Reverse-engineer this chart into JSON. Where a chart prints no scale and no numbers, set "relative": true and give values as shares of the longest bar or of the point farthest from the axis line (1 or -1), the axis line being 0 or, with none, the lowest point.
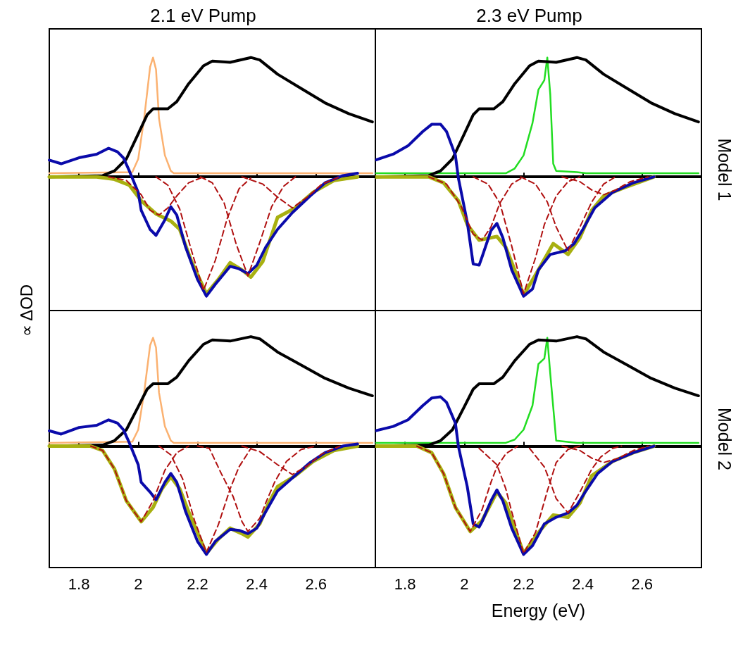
{
  "chart_data": [
    {
      "type": "line",
      "title": "2.1 eV Pump",
      "ylabel": "∝ ΔOD",
      "relative": true,
      "xlim": [
        1.7,
        2.8
      ],
      "xticks": [
        1.8,
        2,
        2.2,
        2.4,
        2.6
      ],
      "tick_labels": false,
      "grid": false,
      "ref_lines": [
        {
          "axis": "y",
          "value": 0,
          "color": "#000000"
        }
      ],
      "series": [
        {
          "color": "#fbb170",
          "x": [
            1.7,
            1.98,
            2.0,
            2.02,
            2.04,
            2.05,
            2.06,
            2.07,
            2.09,
            2.11,
            2.12,
            2.79
          ],
          "values": [
            0.03,
            0.04,
            0.15,
            0.49,
            0.92,
            1.0,
            0.9,
            0.49,
            0.18,
            0.05,
            0.03,
            0.03
          ]
        },
        {
          "color": "#000000",
          "x": [
            1.7,
            1.88,
            1.92,
            1.96,
            2.0,
            2.03,
            2.05,
            2.1,
            2.13,
            2.17,
            2.22,
            2.25,
            2.31,
            2.38,
            2.41,
            2.47,
            2.55,
            2.63,
            2.71,
            2.79
          ],
          "values": [
            0,
            0.01,
            0.05,
            0.15,
            0.36,
            0.52,
            0.57,
            0.57,
            0.63,
            0.78,
            0.93,
            0.97,
            0.96,
            1.0,
            0.98,
            0.86,
            0.74,
            0.62,
            0.53,
            0.46
          ]
        },
        {
          "color": "#a8b010",
          "x": [
            1.7,
            1.86,
            1.92,
            1.97,
            2.01,
            2.06,
            2.11,
            2.14,
            2.18,
            2.23,
            2.27,
            2.31,
            2.35,
            2.38,
            2.42,
            2.47,
            2.53,
            2.59,
            2.66,
            2.74
          ],
          "values": [
            0,
            0,
            -0.02,
            -0.07,
            -0.2,
            -0.31,
            -0.37,
            -0.44,
            -0.71,
            -0.98,
            -0.86,
            -0.72,
            -0.78,
            -0.84,
            -0.71,
            -0.34,
            -0.26,
            -0.13,
            -0.03,
            0
          ]
        },
        {
          "color": "#b01010",
          "line_style": "dashed",
          "x": [
            1.9,
            1.96,
            2.01,
            2.04,
            2.07,
            2.1,
            2.13,
            2.17,
            2.22
          ],
          "values": [
            0,
            -0.03,
            -0.15,
            -0.28,
            -0.32,
            -0.26,
            -0.16,
            -0.05,
            0
          ]
        },
        {
          "color": "#b01010",
          "line_style": "dashed",
          "x": [
            2.06,
            2.1,
            2.14,
            2.18,
            2.22,
            2.26,
            2.3,
            2.34,
            2.38
          ],
          "values": [
            0,
            -0.07,
            -0.27,
            -0.62,
            -0.95,
            -0.7,
            -0.35,
            -0.1,
            -0.01
          ]
        },
        {
          "color": "#b01010",
          "line_style": "dashed",
          "x": [
            2.21,
            2.25,
            2.29,
            2.33,
            2.37,
            2.41,
            2.45,
            2.49,
            2.53
          ],
          "values": [
            0,
            -0.05,
            -0.22,
            -0.56,
            -0.83,
            -0.55,
            -0.25,
            -0.08,
            0
          ]
        },
        {
          "color": "#b01010",
          "line_style": "dashed",
          "x": [
            2.35,
            2.42,
            2.47,
            2.52,
            2.57,
            2.62,
            2.68
          ],
          "values": [
            0,
            -0.06,
            -0.17,
            -0.26,
            -0.17,
            -0.06,
            0
          ]
        },
        {
          "color": "#0a0aaa",
          "x": [
            1.7,
            1.74,
            1.8,
            1.86,
            1.9,
            1.93,
            1.95,
            1.97,
            2.0,
            2.01,
            2.04,
            2.06,
            2.09,
            2.11,
            2.13,
            2.16,
            2.2,
            2.23,
            2.26,
            2.31,
            2.34,
            2.37,
            2.4,
            2.43,
            2.47,
            2.52,
            2.58,
            2.63,
            2.69,
            2.74
          ],
          "values": [
            0.14,
            0.11,
            0.16,
            0.19,
            0.24,
            0.21,
            0.16,
            0.05,
            -0.13,
            -0.28,
            -0.44,
            -0.49,
            -0.36,
            -0.25,
            -0.32,
            -0.59,
            -0.86,
            -1.0,
            -0.9,
            -0.75,
            -0.77,
            -0.81,
            -0.74,
            -0.59,
            -0.44,
            -0.3,
            -0.16,
            -0.05,
            0.01,
            0.03
          ]
        }
      ]
    },
    {
      "type": "line",
      "title": "2.3 eV Pump",
      "y2label": "Model 1",
      "relative": true,
      "xlim": [
        1.7,
        2.8
      ],
      "xticks": [
        1.8,
        2,
        2.2,
        2.4,
        2.6
      ],
      "tick_labels": false,
      "grid": false,
      "ref_lines": [
        {
          "axis": "y",
          "value": 0,
          "color": "#000000"
        }
      ],
      "series": [
        {
          "color": "#22dd22",
          "x": [
            1.7,
            2.14,
            2.17,
            2.2,
            2.23,
            2.25,
            2.27,
            2.28,
            2.29,
            2.3,
            2.31,
            2.38,
            2.41,
            2.79
          ],
          "values": [
            0.03,
            0.03,
            0.07,
            0.18,
            0.45,
            0.73,
            0.81,
            1.0,
            0.69,
            0.11,
            0.05,
            0.04,
            0.03,
            0.03
          ]
        },
        {
          "color": "#000000",
          "x": [
            1.7,
            1.88,
            1.92,
            1.96,
            2.0,
            2.03,
            2.05,
            2.1,
            2.13,
            2.17,
            2.22,
            2.25,
            2.31,
            2.38,
            2.41,
            2.47,
            2.55,
            2.63,
            2.71,
            2.79
          ],
          "values": [
            0,
            0.01,
            0.05,
            0.15,
            0.36,
            0.52,
            0.57,
            0.57,
            0.63,
            0.78,
            0.93,
            0.97,
            0.96,
            1.0,
            0.98,
            0.86,
            0.74,
            0.62,
            0.53,
            0.46
          ]
        },
        {
          "color": "#a8b010",
          "x": [
            1.7,
            1.88,
            1.93,
            1.98,
            2.01,
            2.05,
            2.11,
            2.14,
            2.17,
            2.2,
            2.25,
            2.3,
            2.35,
            2.39,
            2.43,
            2.47,
            2.54,
            2.64
          ],
          "values": [
            0,
            0,
            -0.05,
            -0.2,
            -0.4,
            -0.53,
            -0.5,
            -0.59,
            -0.78,
            -0.99,
            -0.78,
            -0.56,
            -0.65,
            -0.51,
            -0.28,
            -0.16,
            -0.09,
            0
          ]
        },
        {
          "color": "#b01010",
          "line_style": "dashed",
          "x": [
            1.88,
            1.94,
            1.99,
            2.03,
            2.06,
            2.09,
            2.12,
            2.16,
            2.2
          ],
          "values": [
            0,
            -0.06,
            -0.25,
            -0.48,
            -0.53,
            -0.42,
            -0.22,
            -0.06,
            0
          ]
        },
        {
          "color": "#b01010",
          "line_style": "dashed",
          "x": [
            2.03,
            2.08,
            2.12,
            2.16,
            2.2,
            2.24,
            2.27,
            2.31,
            2.35,
            2.39
          ],
          "values": [
            0,
            -0.06,
            -0.22,
            -0.58,
            -0.98,
            -0.68,
            -0.4,
            -0.16,
            -0.04,
            0
          ]
        },
        {
          "color": "#b01010",
          "line_style": "dashed",
          "x": [
            2.19,
            2.24,
            2.28,
            2.31,
            2.35,
            2.39,
            2.43,
            2.47,
            2.51
          ],
          "values": [
            0,
            -0.06,
            -0.21,
            -0.42,
            -0.62,
            -0.42,
            -0.21,
            -0.06,
            0
          ]
        },
        {
          "color": "#b01010",
          "line_style": "dashed",
          "x": [
            2.33,
            2.39,
            2.43,
            2.47,
            2.51,
            2.56,
            2.62
          ],
          "values": [
            0,
            -0.04,
            -0.11,
            -0.15,
            -0.11,
            -0.04,
            0
          ]
        },
        {
          "color": "#0a0aaa",
          "x": [
            1.7,
            1.76,
            1.81,
            1.86,
            1.89,
            1.92,
            1.94,
            1.97,
            1.98,
            2.01,
            2.03,
            2.05,
            2.06,
            2.09,
            2.11,
            2.13,
            2.16,
            2.2,
            2.23,
            2.25,
            2.29,
            2.34,
            2.37,
            2.4,
            2.44,
            2.5,
            2.57,
            2.64
          ],
          "values": [
            0.14,
            0.19,
            0.26,
            0.38,
            0.44,
            0.44,
            0.38,
            0.18,
            -0.01,
            -0.38,
            -0.73,
            -0.74,
            -0.67,
            -0.45,
            -0.39,
            -0.51,
            -0.78,
            -1.0,
            -0.94,
            -0.78,
            -0.65,
            -0.62,
            -0.56,
            -0.44,
            -0.26,
            -0.13,
            -0.05,
            0
          ]
        }
      ]
    },
    {
      "type": "line",
      "relative": true,
      "xlim": [
        1.7,
        2.8
      ],
      "xticks": [
        1.8,
        2,
        2.2,
        2.4,
        2.6
      ],
      "tick_labels": "x",
      "grid": false,
      "ref_lines": [
        {
          "axis": "y",
          "value": 0,
          "color": "#000000"
        }
      ],
      "series": [
        {
          "color": "#fbb170",
          "x": [
            1.7,
            1.98,
            2.0,
            2.02,
            2.04,
            2.05,
            2.06,
            2.07,
            2.09,
            2.11,
            2.12,
            2.79
          ],
          "values": [
            0.03,
            0.04,
            0.15,
            0.49,
            0.92,
            0.99,
            0.9,
            0.49,
            0.18,
            0.05,
            0.03,
            0.03
          ]
        },
        {
          "color": "#000000",
          "x": [
            1.7,
            1.88,
            1.92,
            1.96,
            2.0,
            2.03,
            2.05,
            2.1,
            2.13,
            2.17,
            2.22,
            2.25,
            2.31,
            2.38,
            2.41,
            2.47,
            2.55,
            2.63,
            2.71,
            2.79
          ],
          "values": [
            0,
            0.01,
            0.05,
            0.15,
            0.36,
            0.52,
            0.57,
            0.57,
            0.63,
            0.78,
            0.93,
            0.97,
            0.96,
            1.0,
            0.98,
            0.86,
            0.74,
            0.62,
            0.53,
            0.46
          ]
        },
        {
          "color": "#a8b010",
          "x": [
            1.7,
            1.84,
            1.88,
            1.92,
            1.96,
            2.01,
            2.05,
            2.08,
            2.11,
            2.14,
            2.17,
            2.23,
            2.27,
            2.31,
            2.35,
            2.37,
            2.41,
            2.44,
            2.47,
            2.53,
            2.59,
            2.66,
            2.74
          ],
          "values": [
            0,
            0,
            -0.04,
            -0.21,
            -0.5,
            -0.69,
            -0.56,
            -0.39,
            -0.28,
            -0.39,
            -0.6,
            -0.98,
            -0.85,
            -0.75,
            -0.8,
            -0.83,
            -0.71,
            -0.52,
            -0.37,
            -0.27,
            -0.14,
            -0.04,
            0
          ]
        },
        {
          "color": "#b01010",
          "line_style": "dashed",
          "x": [
            1.84,
            1.88,
            1.92,
            1.96,
            2.01,
            2.05,
            2.09,
            2.13,
            2.17
          ],
          "values": [
            0,
            -0.04,
            -0.21,
            -0.5,
            -0.69,
            -0.5,
            -0.22,
            -0.06,
            0
          ]
        },
        {
          "color": "#b01010",
          "line_style": "dashed",
          "x": [
            2.07,
            2.11,
            2.15,
            2.19,
            2.23,
            2.27,
            2.31,
            2.34,
            2.38
          ],
          "values": [
            0,
            -0.08,
            -0.3,
            -0.68,
            -0.97,
            -0.72,
            -0.39,
            -0.19,
            -0.02
          ]
        },
        {
          "color": "#b01010",
          "line_style": "dashed",
          "x": [
            2.2,
            2.24,
            2.28,
            2.32,
            2.35,
            2.37,
            2.41,
            2.43,
            2.46,
            2.5,
            2.55,
            2.6
          ],
          "values": [
            0,
            -0.02,
            -0.25,
            -0.46,
            -0.69,
            -0.78,
            -0.66,
            -0.52,
            -0.33,
            -0.14,
            -0.03,
            0
          ]
        },
        {
          "color": "#b01010",
          "line_style": "dashed",
          "x": [
            2.35,
            2.41,
            2.47,
            2.52,
            2.57,
            2.62,
            2.68
          ],
          "values": [
            0,
            -0.05,
            -0.17,
            -0.26,
            -0.18,
            -0.07,
            0
          ]
        },
        {
          "color": "#0a0aaa",
          "x": [
            1.7,
            1.74,
            1.8,
            1.86,
            1.9,
            1.93,
            1.95,
            1.97,
            2.0,
            2.01,
            2.04,
            2.06,
            2.09,
            2.11,
            2.13,
            2.16,
            2.2,
            2.23,
            2.26,
            2.31,
            2.34,
            2.37,
            2.4,
            2.43,
            2.47,
            2.52,
            2.58,
            2.63,
            2.69,
            2.74
          ],
          "values": [
            0.14,
            0.11,
            0.17,
            0.19,
            0.24,
            0.21,
            0.15,
            0.03,
            -0.17,
            -0.33,
            -0.42,
            -0.49,
            -0.33,
            -0.25,
            -0.33,
            -0.6,
            -0.87,
            -0.99,
            -0.87,
            -0.76,
            -0.77,
            -0.8,
            -0.75,
            -0.6,
            -0.41,
            -0.29,
            -0.15,
            -0.06,
            0,
            0.02
          ]
        }
      ]
    },
    {
      "type": "line",
      "xlabel": "Energy (eV)",
      "y2label": "Model 2",
      "relative": true,
      "xlim": [
        1.7,
        2.8
      ],
      "xticks": [
        1.8,
        2,
        2.2,
        2.4,
        2.6
      ],
      "tick_labels": "x",
      "grid": false,
      "ref_lines": [
        {
          "axis": "y",
          "value": 0,
          "color": "#000000"
        }
      ],
      "series": [
        {
          "color": "#22dd22",
          "x": [
            1.7,
            2.14,
            2.17,
            2.2,
            2.23,
            2.25,
            2.27,
            2.28,
            2.29,
            2.31,
            2.38,
            2.79
          ],
          "values": [
            0.03,
            0.03,
            0.06,
            0.15,
            0.37,
            0.75,
            0.8,
            0.99,
            0.66,
            0.05,
            0.03,
            0.03
          ]
        },
        {
          "color": "#000000",
          "x": [
            1.7,
            1.88,
            1.92,
            1.96,
            2.0,
            2.03,
            2.05,
            2.1,
            2.13,
            2.17,
            2.22,
            2.25,
            2.31,
            2.38,
            2.41,
            2.47,
            2.55,
            2.63,
            2.71,
            2.79
          ],
          "values": [
            0,
            0.01,
            0.05,
            0.15,
            0.36,
            0.52,
            0.57,
            0.57,
            0.63,
            0.78,
            0.93,
            0.97,
            0.96,
            1.0,
            0.98,
            0.86,
            0.74,
            0.62,
            0.53,
            0.46
          ]
        },
        {
          "color": "#a8b010",
          "x": [
            1.7,
            1.84,
            1.89,
            1.93,
            1.97,
            2.02,
            2.06,
            2.11,
            2.14,
            2.17,
            2.2,
            2.25,
            2.3,
            2.35,
            2.39,
            2.43,
            2.5,
            2.57,
            2.64
          ],
          "values": [
            0,
            0,
            -0.06,
            -0.25,
            -0.56,
            -0.78,
            -0.68,
            -0.42,
            -0.52,
            -0.75,
            -0.98,
            -0.79,
            -0.63,
            -0.65,
            -0.52,
            -0.27,
            -0.14,
            -0.06,
            0
          ]
        },
        {
          "color": "#b01010",
          "line_style": "dashed",
          "x": [
            1.84,
            1.89,
            1.93,
            1.97,
            2.02,
            2.06,
            2.09,
            2.11,
            2.14,
            2.18
          ],
          "values": [
            0,
            -0.06,
            -0.25,
            -0.56,
            -0.78,
            -0.58,
            -0.33,
            -0.19,
            -0.07,
            0
          ]
        },
        {
          "color": "#b01010",
          "line_style": "dashed",
          "x": [
            2.05,
            2.11,
            2.14,
            2.16,
            2.2,
            2.24,
            2.28,
            2.31,
            2.35,
            2.39
          ],
          "values": [
            -0.02,
            -0.17,
            -0.39,
            -0.6,
            -0.98,
            -0.79,
            -0.41,
            -0.15,
            -0.03,
            0
          ]
        },
        {
          "color": "#b01010",
          "line_style": "dashed",
          "x": [
            2.22,
            2.27,
            2.29,
            2.31,
            2.35,
            2.39,
            2.43,
            2.46,
            2.5,
            2.53
          ],
          "values": [
            -0.02,
            -0.19,
            -0.33,
            -0.48,
            -0.61,
            -0.42,
            -0.21,
            -0.1,
            -0.02,
            0
          ]
        },
        {
          "color": "#b01010",
          "line_style": "dashed",
          "x": [
            2.33,
            2.39,
            2.43,
            2.47,
            2.52,
            2.57,
            2.62
          ],
          "values": [
            0,
            -0.04,
            -0.11,
            -0.15,
            -0.11,
            -0.04,
            0
          ]
        },
        {
          "color": "#0a0aaa",
          "x": [
            1.7,
            1.76,
            1.81,
            1.86,
            1.89,
            1.92,
            1.94,
            1.97,
            1.98,
            2.01,
            2.03,
            2.05,
            2.06,
            2.09,
            2.11,
            2.13,
            2.16,
            2.2,
            2.23,
            2.27,
            2.31,
            2.35,
            2.38,
            2.41,
            2.45,
            2.5,
            2.57,
            2.64
          ],
          "values": [
            0.14,
            0.18,
            0.24,
            0.37,
            0.44,
            0.45,
            0.4,
            0.21,
            0,
            -0.37,
            -0.71,
            -0.74,
            -0.69,
            -0.5,
            -0.4,
            -0.5,
            -0.75,
            -0.99,
            -0.91,
            -0.71,
            -0.65,
            -0.61,
            -0.54,
            -0.41,
            -0.25,
            -0.14,
            -0.06,
            0
          ]
        }
      ]
    }
  ]
}
